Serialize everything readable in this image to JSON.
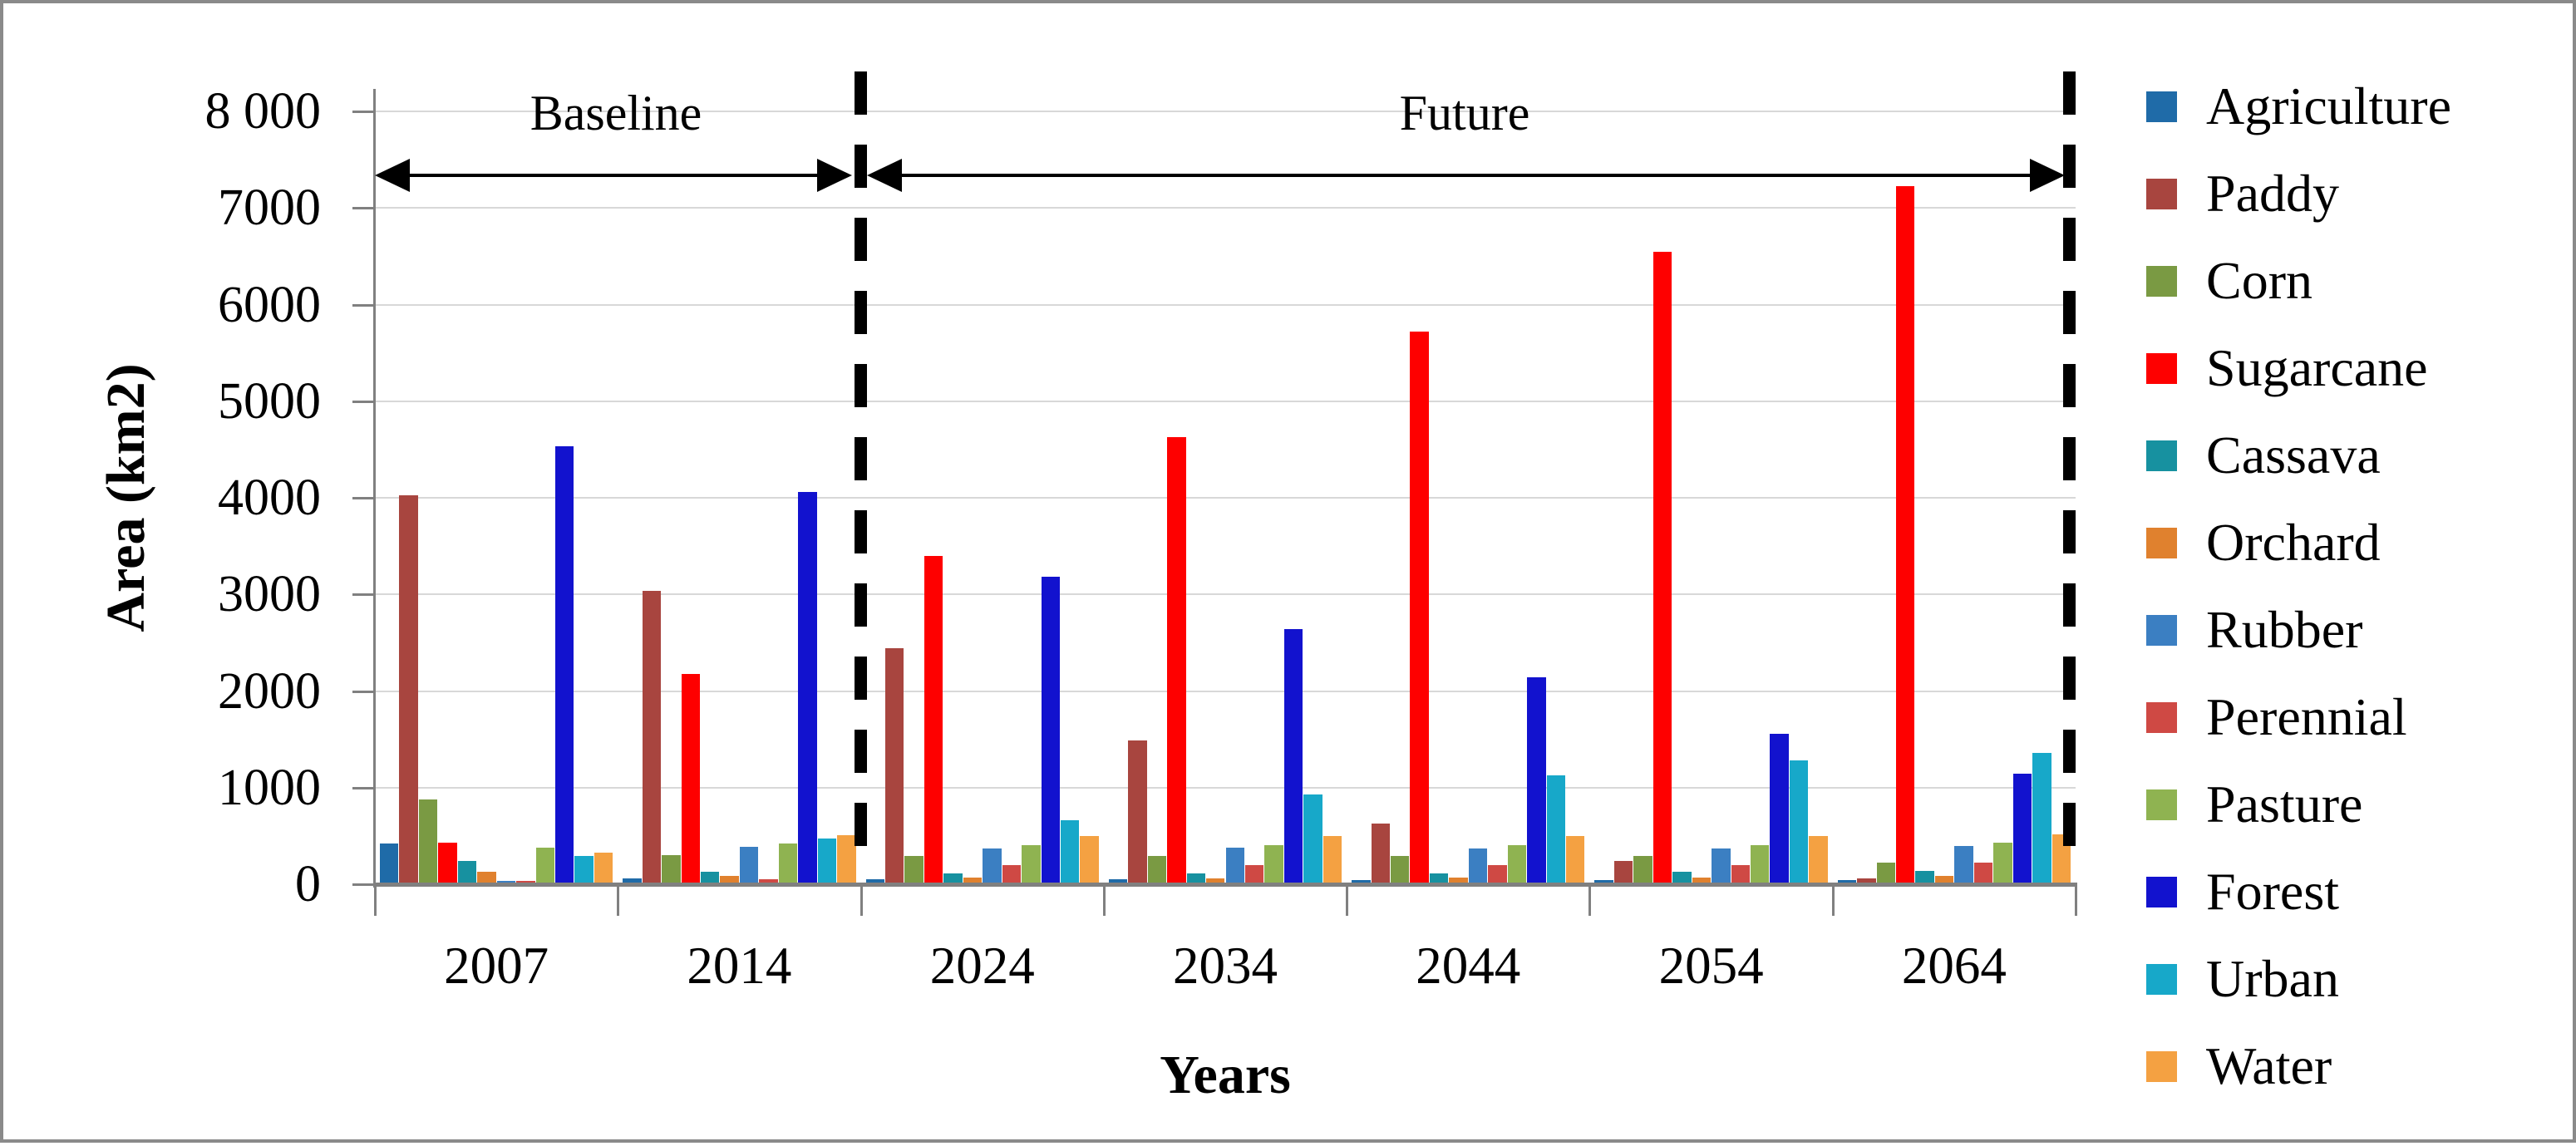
{
  "chart_data": {
    "type": "bar",
    "title": "",
    "xlabel": "Years",
    "ylabel": "Area (km2)",
    "categories": [
      "2007",
      "2014",
      "2024",
      "2034",
      "2044",
      "2054",
      "2064"
    ],
    "series": [
      {
        "name": "Agriculture",
        "color": "#1F6BA8",
        "values": [
          420,
          60,
          50,
          50,
          40,
          40,
          45
        ]
      },
      {
        "name": "Paddy",
        "color": "#A8453F",
        "values": [
          4030,
          3040,
          2440,
          1490,
          630,
          240,
          60
        ]
      },
      {
        "name": "Corn",
        "color": "#7A9A43",
        "values": [
          880,
          300,
          290,
          290,
          290,
          290,
          220
        ]
      },
      {
        "name": "Sugarcane",
        "color": "#FE0000",
        "values": [
          430,
          2180,
          3400,
          4630,
          5720,
          6550,
          7230
        ]
      },
      {
        "name": "Cassava",
        "color": "#1791A0",
        "values": [
          245,
          130,
          115,
          115,
          115,
          125,
          135
        ]
      },
      {
        "name": "Orchard",
        "color": "#E0812E",
        "values": [
          130,
          85,
          65,
          60,
          65,
          65,
          85
        ]
      },
      {
        "name": "Rubber",
        "color": "#3B7FC2",
        "values": [
          35,
          385,
          370,
          380,
          370,
          370,
          395
        ]
      },
      {
        "name": "Perennial",
        "color": "#CF4944",
        "values": [
          35,
          55,
          195,
          195,
          200,
          200,
          220
        ]
      },
      {
        "name": "Pasture",
        "color": "#8FB351",
        "values": [
          380,
          420,
          405,
          405,
          405,
          405,
          430
        ]
      },
      {
        "name": "Forest",
        "color": "#1212CE",
        "values": [
          4530,
          4060,
          3180,
          2645,
          2140,
          1560,
          1140
        ]
      },
      {
        "name": "Urban",
        "color": "#17A8C9",
        "values": [
          290,
          470,
          665,
          925,
          1130,
          1280,
          1360
        ]
      },
      {
        "name": "Water",
        "color": "#F4A142",
        "values": [
          330,
          505,
          500,
          500,
          500,
          500,
          515
        ]
      }
    ],
    "ylim": [
      0,
      8000
    ],
    "y_tick_labels": [
      "0",
      "1000",
      "2000",
      "3000",
      "4000",
      "5000",
      "6000",
      "7000",
      "8 000"
    ],
    "grid": "horizontal-light-gray",
    "legend_position": "right",
    "annotations": {
      "baseline_label": "Baseline",
      "future_label": "Future",
      "baseline_categories": [
        "2007",
        "2014"
      ],
      "future_categories": [
        "2024",
        "2034",
        "2044",
        "2054",
        "2064"
      ],
      "separator_style": "vertical-black-dashed"
    }
  },
  "axis": {
    "y_title": "Area (km2)",
    "x_title": "Years"
  },
  "colors": {
    "gridline": "#d8d8d8",
    "axis": "#808080",
    "annotation": "#000000",
    "background": "#ffffff"
  }
}
